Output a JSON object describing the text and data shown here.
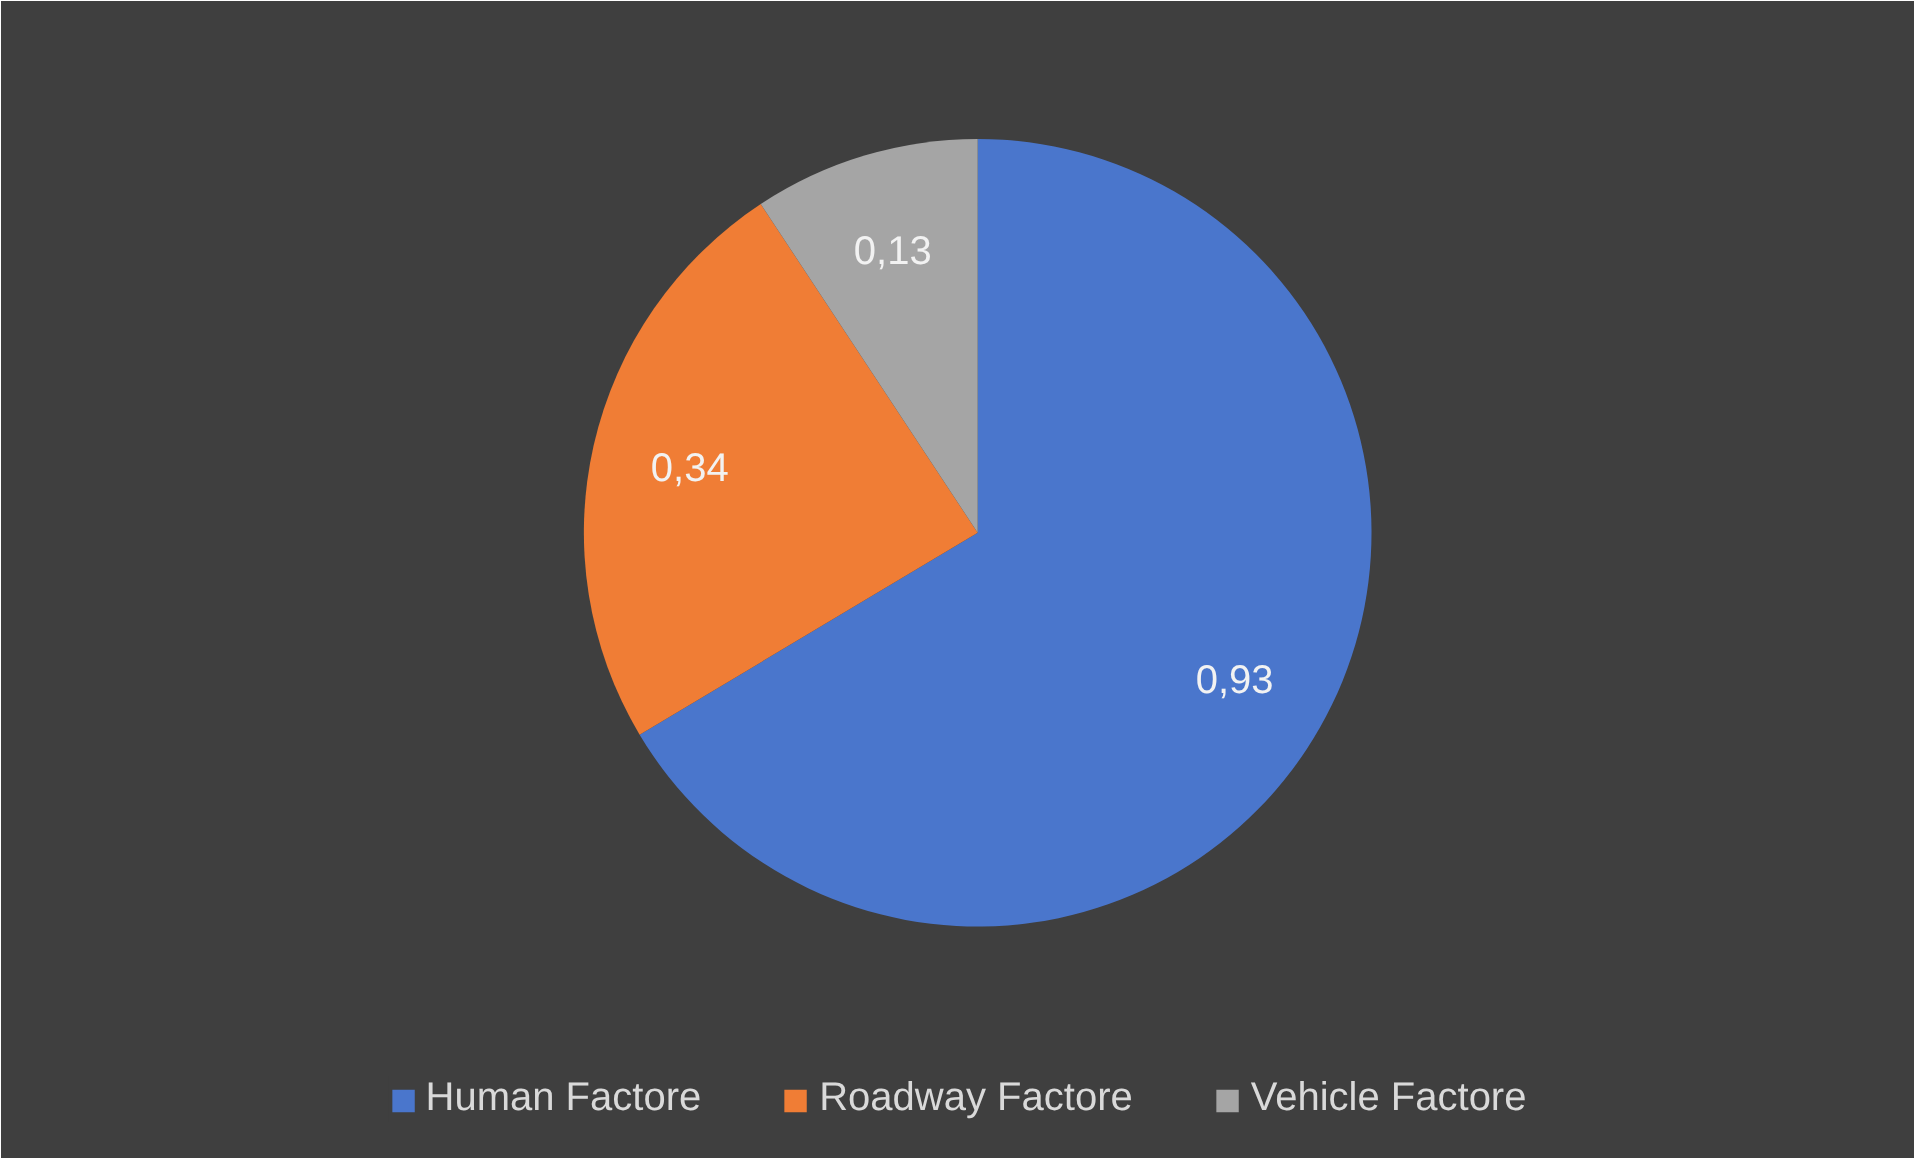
{
  "chart_data": {
    "type": "pie",
    "categories": [
      "Human Factore",
      "Roadway Factore",
      "Vehicle Factore"
    ],
    "values": [
      0.93,
      0.34,
      0.13
    ],
    "colors": [
      "#4a76cc",
      "#f07d35",
      "#a5a5a5"
    ],
    "value_labels": [
      "0,93",
      "0,34",
      "0,13"
    ],
    "legend": "bottom"
  }
}
